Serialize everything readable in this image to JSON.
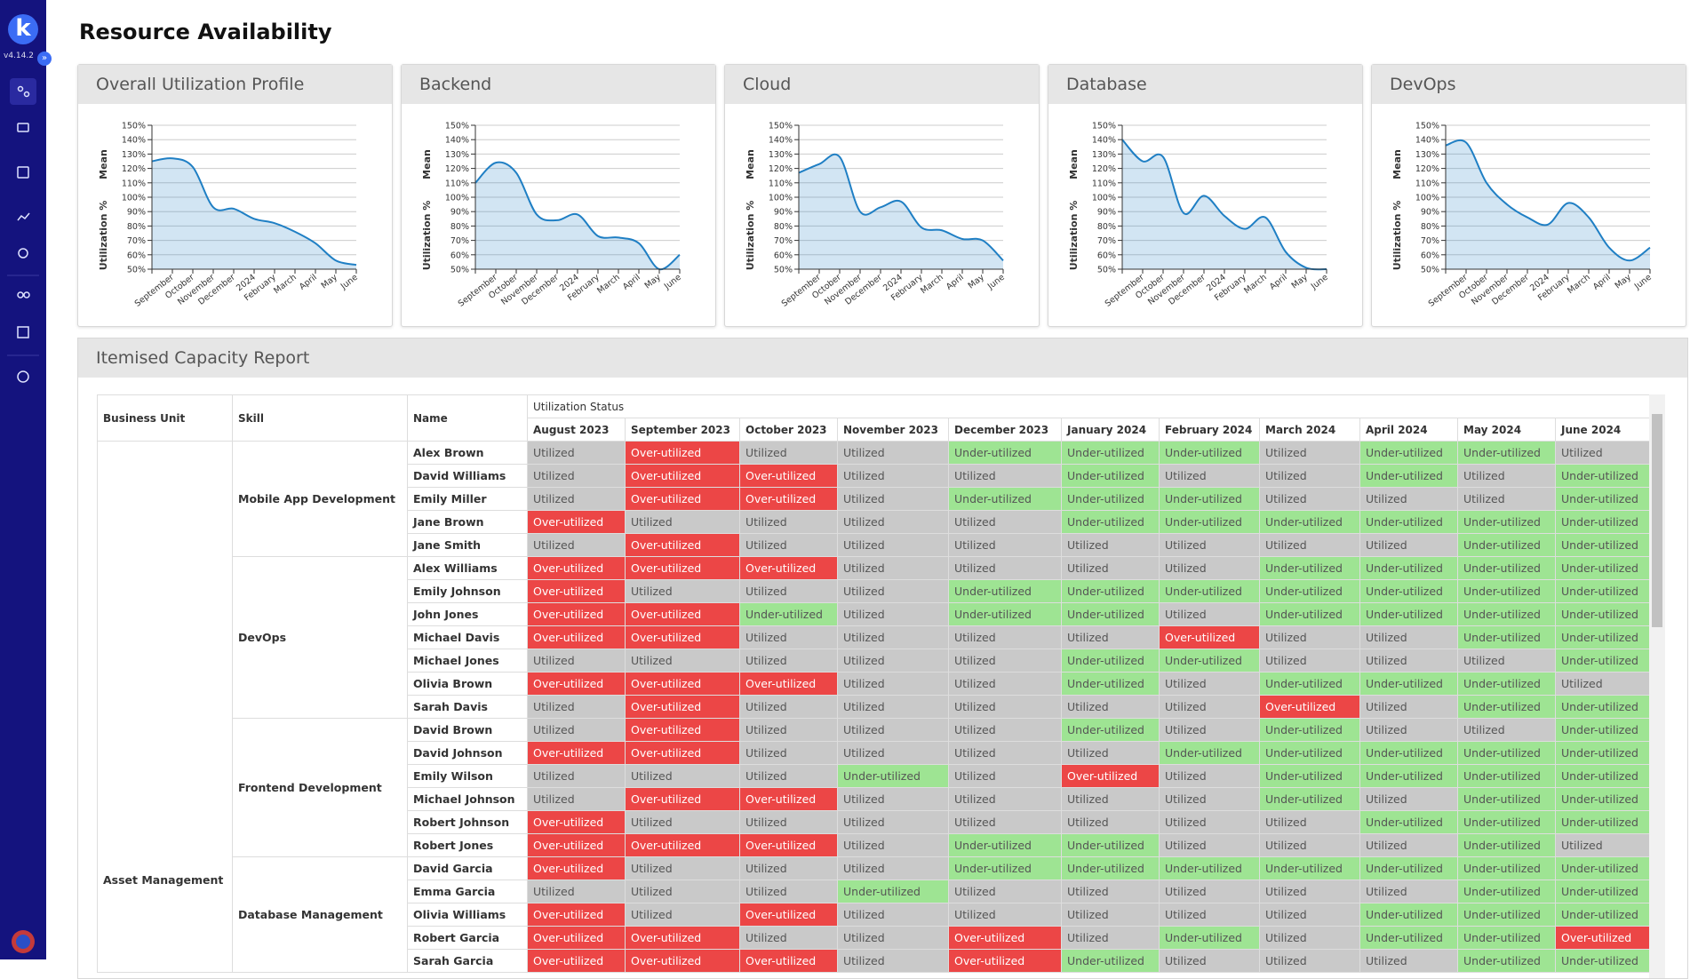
{
  "app": {
    "version": "v4.14.2"
  },
  "page_title": "Resource Availability",
  "chart_data": [
    {
      "type": "area",
      "title": "Overall Utilization Profile",
      "ylabel": [
        "Mean",
        "Utilization %"
      ],
      "categories": [
        null,
        "September",
        "October",
        "November",
        "December",
        "2024",
        "February",
        "March",
        "April",
        "May",
        "June"
      ],
      "series": [
        {
          "color": "#1f7fc4",
          "values": [
            125,
            127,
            121,
            93,
            92,
            85,
            82,
            76,
            68,
            56,
            53
          ]
        }
      ],
      "ylim": [
        50,
        150
      ],
      "yticks": [
        {
          "value": 50,
          "label": "50%"
        },
        {
          "value": 60,
          "label": "60%"
        },
        {
          "value": 70,
          "label": "70%"
        },
        {
          "value": 80,
          "label": "80%"
        },
        {
          "value": 90,
          "label": "90%"
        },
        {
          "value": 100,
          "label": "100%"
        },
        {
          "value": 110,
          "label": "110%"
        },
        {
          "value": 120,
          "label": "120%"
        },
        {
          "value": 130,
          "label": "130%"
        },
        {
          "value": 140,
          "label": "140%"
        },
        {
          "value": 150,
          "label": "150%"
        }
      ],
      "grid": true
    },
    {
      "type": "area",
      "title": "Backend",
      "ylabel": [
        "Mean",
        "Utilization %"
      ],
      "categories": [
        null,
        "September",
        "October",
        "November",
        "December",
        "2024",
        "February",
        "March",
        "April",
        "May",
        "June"
      ],
      "series": [
        {
          "color": "#1f7fc4",
          "values": [
            110,
            124,
            117,
            88,
            84,
            88,
            73,
            72,
            68,
            50,
            60
          ]
        }
      ],
      "ylim": [
        50,
        150
      ],
      "yticks": [
        {
          "value": 50,
          "label": "50%"
        },
        {
          "value": 60,
          "label": "60%"
        },
        {
          "value": 70,
          "label": "70%"
        },
        {
          "value": 80,
          "label": "80%"
        },
        {
          "value": 90,
          "label": "90%"
        },
        {
          "value": 100,
          "label": "100%"
        },
        {
          "value": 110,
          "label": "110%"
        },
        {
          "value": 120,
          "label": "120%"
        },
        {
          "value": 130,
          "label": "130%"
        },
        {
          "value": 140,
          "label": "140%"
        },
        {
          "value": 150,
          "label": "150%"
        }
      ],
      "grid": true
    },
    {
      "type": "area",
      "title": "Cloud",
      "ylabel": [
        "Mean",
        "Utilization %"
      ],
      "categories": [
        null,
        "September",
        "October",
        "November",
        "December",
        "2024",
        "February",
        "March",
        "April",
        "May",
        "June"
      ],
      "series": [
        {
          "color": "#1f7fc4",
          "values": [
            117,
            123,
            128,
            90,
            93,
            97,
            79,
            77,
            71,
            70,
            56
          ]
        }
      ],
      "ylim": [
        50,
        150
      ],
      "yticks": [
        {
          "value": 50,
          "label": "50%"
        },
        {
          "value": 60,
          "label": "60%"
        },
        {
          "value": 70,
          "label": "70%"
        },
        {
          "value": 80,
          "label": "80%"
        },
        {
          "value": 90,
          "label": "90%"
        },
        {
          "value": 100,
          "label": "100%"
        },
        {
          "value": 110,
          "label": "110%"
        },
        {
          "value": 120,
          "label": "120%"
        },
        {
          "value": 130,
          "label": "130%"
        },
        {
          "value": 140,
          "label": "140%"
        },
        {
          "value": 150,
          "label": "150%"
        }
      ],
      "grid": true
    },
    {
      "type": "area",
      "title": "Database",
      "ylabel": [
        "Mean",
        "Utilization %"
      ],
      "categories": [
        null,
        "September",
        "October",
        "November",
        "December",
        "2024",
        "February",
        "March",
        "April",
        "May",
        "June"
      ],
      "series": [
        {
          "color": "#1f7fc4",
          "values": [
            140,
            125,
            128,
            89,
            101,
            87,
            78,
            86,
            62,
            51,
            50
          ]
        }
      ],
      "ylim": [
        50,
        150
      ],
      "yticks": [
        {
          "value": 50,
          "label": "50%"
        },
        {
          "value": 60,
          "label": "60%"
        },
        {
          "value": 70,
          "label": "70%"
        },
        {
          "value": 80,
          "label": "80%"
        },
        {
          "value": 90,
          "label": "90%"
        },
        {
          "value": 100,
          "label": "100%"
        },
        {
          "value": 110,
          "label": "110%"
        },
        {
          "value": 120,
          "label": "120%"
        },
        {
          "value": 130,
          "label": "130%"
        },
        {
          "value": 140,
          "label": "140%"
        },
        {
          "value": 150,
          "label": "150%"
        }
      ],
      "grid": true
    },
    {
      "type": "area",
      "title": "DevOps",
      "ylabel": [
        "Mean",
        "Utilization %"
      ],
      "categories": [
        null,
        "September",
        "October",
        "November",
        "December",
        "2024",
        "February",
        "March",
        "April",
        "May",
        "June"
      ],
      "series": [
        {
          "color": "#1f7fc4",
          "values": [
            136,
            138,
            110,
            95,
            86,
            81,
            96,
            86,
            65,
            56,
            65
          ]
        }
      ],
      "ylim": [
        50,
        150
      ],
      "yticks": [
        {
          "value": 50,
          "label": "50%"
        },
        {
          "value": 60,
          "label": "60%"
        },
        {
          "value": 70,
          "label": "70%"
        },
        {
          "value": 80,
          "label": "80%"
        },
        {
          "value": 90,
          "label": "90%"
        },
        {
          "value": 100,
          "label": "100%"
        },
        {
          "value": 110,
          "label": "110%"
        },
        {
          "value": 120,
          "label": "120%"
        },
        {
          "value": 130,
          "label": "130%"
        },
        {
          "value": 140,
          "label": "140%"
        },
        {
          "value": 150,
          "label": "150%"
        }
      ],
      "grid": true
    }
  ],
  "table": {
    "title": "Itemised Capacity Report",
    "columns": [
      "Business Unit",
      "Skill",
      "Name"
    ],
    "group_header": "Utilization Status",
    "months": [
      "August 2023",
      "September 2023",
      "October 2023",
      "November 2023",
      "December 2023",
      "January 2024",
      "February 2024",
      "March 2024",
      "April 2024",
      "May 2024",
      "June 2024"
    ],
    "status_colors": {
      "Over-utilized": "#ec4646",
      "Utilized": "#c9c9c9",
      "Under-utilized": "#9ee493"
    },
    "business_units": [
      {
        "name": "Asset Management",
        "skills": [
          {
            "name": "Mobile App Development",
            "people": [
              {
                "name": "Alex Brown",
                "statuses": [
                  "Utilized",
                  "Over-utilized",
                  "Utilized",
                  "Utilized",
                  "Under-utilized",
                  "Under-utilized",
                  "Under-utilized",
                  "Utilized",
                  "Under-utilized",
                  "Under-utilized",
                  "Utilized"
                ]
              },
              {
                "name": "David Williams",
                "statuses": [
                  "Utilized",
                  "Over-utilized",
                  "Over-utilized",
                  "Utilized",
                  "Utilized",
                  "Under-utilized",
                  "Utilized",
                  "Utilized",
                  "Under-utilized",
                  "Utilized",
                  "Under-utilized"
                ]
              },
              {
                "name": "Emily Miller",
                "statuses": [
                  "Utilized",
                  "Over-utilized",
                  "Over-utilized",
                  "Utilized",
                  "Under-utilized",
                  "Under-utilized",
                  "Under-utilized",
                  "Utilized",
                  "Utilized",
                  "Utilized",
                  "Under-utilized"
                ]
              },
              {
                "name": "Jane Brown",
                "statuses": [
                  "Over-utilized",
                  "Utilized",
                  "Utilized",
                  "Utilized",
                  "Utilized",
                  "Under-utilized",
                  "Under-utilized",
                  "Under-utilized",
                  "Under-utilized",
                  "Under-utilized",
                  "Under-utilized"
                ]
              },
              {
                "name": "Jane Smith",
                "statuses": [
                  "Utilized",
                  "Over-utilized",
                  "Utilized",
                  "Utilized",
                  "Utilized",
                  "Utilized",
                  "Utilized",
                  "Utilized",
                  "Utilized",
                  "Under-utilized",
                  "Under-utilized"
                ]
              }
            ]
          },
          {
            "name": "DevOps",
            "people": [
              {
                "name": "Alex Williams",
                "statuses": [
                  "Over-utilized",
                  "Over-utilized",
                  "Over-utilized",
                  "Utilized",
                  "Utilized",
                  "Utilized",
                  "Utilized",
                  "Under-utilized",
                  "Under-utilized",
                  "Under-utilized",
                  "Under-utilized"
                ]
              },
              {
                "name": "Emily Johnson",
                "statuses": [
                  "Over-utilized",
                  "Utilized",
                  "Utilized",
                  "Utilized",
                  "Under-utilized",
                  "Under-utilized",
                  "Under-utilized",
                  "Under-utilized",
                  "Under-utilized",
                  "Under-utilized",
                  "Under-utilized"
                ]
              },
              {
                "name": "John Jones",
                "statuses": [
                  "Over-utilized",
                  "Over-utilized",
                  "Under-utilized",
                  "Utilized",
                  "Under-utilized",
                  "Under-utilized",
                  "Utilized",
                  "Under-utilized",
                  "Under-utilized",
                  "Under-utilized",
                  "Under-utilized"
                ]
              },
              {
                "name": "Michael Davis",
                "statuses": [
                  "Over-utilized",
                  "Over-utilized",
                  "Utilized",
                  "Utilized",
                  "Utilized",
                  "Utilized",
                  "Over-utilized",
                  "Utilized",
                  "Utilized",
                  "Under-utilized",
                  "Under-utilized"
                ]
              },
              {
                "name": "Michael Jones",
                "statuses": [
                  "Utilized",
                  "Utilized",
                  "Utilized",
                  "Utilized",
                  "Utilized",
                  "Under-utilized",
                  "Under-utilized",
                  "Utilized",
                  "Utilized",
                  "Utilized",
                  "Under-utilized"
                ]
              },
              {
                "name": "Olivia Brown",
                "statuses": [
                  "Over-utilized",
                  "Over-utilized",
                  "Over-utilized",
                  "Utilized",
                  "Utilized",
                  "Under-utilized",
                  "Utilized",
                  "Under-utilized",
                  "Under-utilized",
                  "Under-utilized",
                  "Utilized"
                ]
              },
              {
                "name": "Sarah Davis",
                "statuses": [
                  "Utilized",
                  "Over-utilized",
                  "Utilized",
                  "Utilized",
                  "Utilized",
                  "Utilized",
                  "Utilized",
                  "Over-utilized",
                  "Utilized",
                  "Under-utilized",
                  "Under-utilized"
                ]
              }
            ]
          },
          {
            "name": "Frontend Development",
            "people": [
              {
                "name": "David Brown",
                "statuses": [
                  "Utilized",
                  "Over-utilized",
                  "Utilized",
                  "Utilized",
                  "Utilized",
                  "Under-utilized",
                  "Utilized",
                  "Under-utilized",
                  "Utilized",
                  "Utilized",
                  "Under-utilized"
                ]
              },
              {
                "name": "David Johnson",
                "statuses": [
                  "Over-utilized",
                  "Over-utilized",
                  "Utilized",
                  "Utilized",
                  "Utilized",
                  "Utilized",
                  "Under-utilized",
                  "Under-utilized",
                  "Under-utilized",
                  "Under-utilized",
                  "Under-utilized"
                ]
              },
              {
                "name": "Emily Wilson",
                "statuses": [
                  "Utilized",
                  "Utilized",
                  "Utilized",
                  "Under-utilized",
                  "Utilized",
                  "Over-utilized",
                  "Utilized",
                  "Under-utilized",
                  "Under-utilized",
                  "Under-utilized",
                  "Under-utilized"
                ]
              },
              {
                "name": "Michael Johnson",
                "statuses": [
                  "Utilized",
                  "Over-utilized",
                  "Over-utilized",
                  "Utilized",
                  "Utilized",
                  "Utilized",
                  "Utilized",
                  "Under-utilized",
                  "Utilized",
                  "Under-utilized",
                  "Under-utilized"
                ]
              },
              {
                "name": "Robert Johnson",
                "statuses": [
                  "Over-utilized",
                  "Utilized",
                  "Utilized",
                  "Utilized",
                  "Utilized",
                  "Utilized",
                  "Utilized",
                  "Utilized",
                  "Under-utilized",
                  "Under-utilized",
                  "Under-utilized"
                ]
              },
              {
                "name": "Robert Jones",
                "statuses": [
                  "Over-utilized",
                  "Over-utilized",
                  "Over-utilized",
                  "Utilized",
                  "Under-utilized",
                  "Under-utilized",
                  "Utilized",
                  "Utilized",
                  "Utilized",
                  "Under-utilized",
                  "Utilized"
                ]
              }
            ]
          },
          {
            "name": "Database Management",
            "people": [
              {
                "name": "David Garcia",
                "statuses": [
                  "Over-utilized",
                  "Utilized",
                  "Utilized",
                  "Utilized",
                  "Under-utilized",
                  "Under-utilized",
                  "Under-utilized",
                  "Under-utilized",
                  "Under-utilized",
                  "Under-utilized",
                  "Under-utilized"
                ]
              },
              {
                "name": "Emma Garcia",
                "statuses": [
                  "Utilized",
                  "Utilized",
                  "Utilized",
                  "Under-utilized",
                  "Utilized",
                  "Utilized",
                  "Utilized",
                  "Utilized",
                  "Utilized",
                  "Under-utilized",
                  "Under-utilized"
                ]
              },
              {
                "name": "Olivia Williams",
                "statuses": [
                  "Over-utilized",
                  "Utilized",
                  "Over-utilized",
                  "Utilized",
                  "Utilized",
                  "Utilized",
                  "Utilized",
                  "Utilized",
                  "Under-utilized",
                  "Under-utilized",
                  "Under-utilized"
                ]
              },
              {
                "name": "Robert Garcia",
                "statuses": [
                  "Over-utilized",
                  "Over-utilized",
                  "Utilized",
                  "Utilized",
                  "Over-utilized",
                  "Utilized",
                  "Under-utilized",
                  "Utilized",
                  "Under-utilized",
                  "Under-utilized",
                  "Over-utilized"
                ]
              },
              {
                "name": "Sarah Garcia",
                "statuses": [
                  "Over-utilized",
                  "Over-utilized",
                  "Over-utilized",
                  "Utilized",
                  "Over-utilized",
                  "Under-utilized",
                  "Utilized",
                  "Utilized",
                  "Utilized",
                  "Under-utilized",
                  "Under-utilized"
                ]
              }
            ]
          }
        ]
      }
    ]
  }
}
